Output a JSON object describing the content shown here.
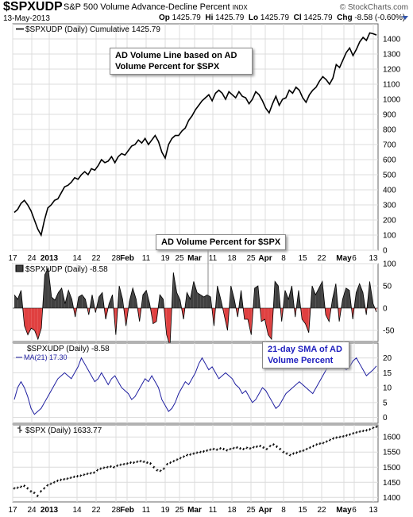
{
  "header": {
    "symbol": "$SPXUDP",
    "description": "S&P 500 Volume Advance-Decline Percent",
    "exchange": "INDX",
    "brand": "© StockCharts.com",
    "date": "13-May-2013",
    "open_label": "Op",
    "open": "1425.79",
    "high_label": "Hi",
    "high": "1425.79",
    "low_label": "Lo",
    "low": "1425.79",
    "close_label": "Cl",
    "close": "1425.79",
    "chg_label": "Chg",
    "chg": "-8.58 (-0.60%)"
  },
  "annotations": {
    "ad_line": "AD Volume Line based on AD Volume Percent for $SPX",
    "ad_percent": "AD Volume Percent for $SPX",
    "sma": "21-day SMA of AD Volume Percent"
  },
  "x_axis": {
    "ticks_top": [
      "17",
      "24",
      "2013",
      "14",
      "22",
      "28",
      "Feb",
      "11",
      "19",
      "25",
      "Mar",
      "11",
      "18",
      "25",
      "Apr",
      "8",
      "15",
      "22",
      "May",
      "6",
      "13"
    ],
    "ticks_bottom": [
      "17",
      "24",
      "2013",
      "14",
      "22",
      "28",
      "Feb",
      "11",
      "19",
      "25",
      "Mar",
      "11",
      "18",
      "25",
      "Apr",
      "8",
      "15",
      "22",
      "May",
      "6",
      "13"
    ],
    "bold_ticks": [
      "2013",
      "Feb",
      "Mar",
      "Apr",
      "May"
    ]
  },
  "chart_data": [
    {
      "type": "line",
      "legend": "$SPXUDP (Daily) Cumulative 1425.79",
      "ylim": [
        0,
        1500
      ],
      "yticks": [
        0,
        100,
        200,
        300,
        400,
        500,
        600,
        700,
        800,
        900,
        1000,
        1100,
        1200,
        1300,
        1400
      ],
      "series": [
        {
          "values": [
            250,
            270,
            310,
            330,
            300,
            260,
            200,
            140,
            100,
            200,
            280,
            300,
            330,
            340,
            380,
            420,
            430,
            450,
            480,
            470,
            500,
            520,
            500,
            540,
            530,
            560,
            600,
            580,
            590,
            620,
            580,
            620,
            640,
            630,
            660,
            690,
            700,
            730,
            710,
            740,
            700,
            730,
            760,
            720,
            650,
            610,
            700,
            740,
            760,
            760,
            790,
            810,
            860,
            890,
            930,
            960,
            990,
            1010,
            1030,
            990,
            1040,
            1060,
            1040,
            1000,
            1050,
            1030,
            1010,
            1050,
            1020,
            1010,
            970,
            1000,
            1050,
            1030,
            990,
            940,
            910,
            970,
            1020,
            960,
            1000,
            1010,
            1060,
            1040,
            1080,
            1060,
            1010,
            980,
            1030,
            1060,
            1080,
            1120,
            1150,
            1130,
            1100,
            1140,
            1230,
            1210,
            1260,
            1310,
            1340,
            1290,
            1330,
            1380,
            1410,
            1390,
            1440,
            1434,
            1426
          ]
        }
      ]
    },
    {
      "type": "bar",
      "legend": "$SPXUDP (Daily) -8.58",
      "ylim": [
        -75,
        100
      ],
      "yticks": [
        -50,
        0,
        50,
        100
      ],
      "series": [
        {
          "values": [
            30,
            20,
            40,
            -40,
            -60,
            -45,
            -50,
            -70,
            -45,
            75,
            90,
            25,
            18,
            35,
            45,
            10,
            40,
            20,
            -20,
            25,
            30,
            20,
            -15,
            30,
            -10,
            25,
            35,
            -25,
            10,
            30,
            -60,
            50,
            20,
            -40,
            15,
            45,
            20,
            -30,
            30,
            40,
            10,
            -35,
            -30,
            30,
            20,
            -60,
            -85,
            80,
            35,
            18,
            -25,
            35,
            20,
            60,
            35,
            30,
            25,
            30,
            25,
            -40,
            50,
            20,
            -15,
            -50,
            50,
            20,
            -20,
            40,
            -25,
            -25,
            -60,
            45,
            50,
            -30,
            -25,
            -60,
            -70,
            60,
            50,
            -30,
            40,
            20,
            50,
            -20,
            40,
            -25,
            -35,
            -55,
            50,
            30,
            45,
            60,
            -15,
            -30,
            20,
            55,
            -30,
            20,
            45,
            40,
            -25,
            35,
            55,
            35,
            -15,
            60,
            10,
            -9
          ]
        }
      ]
    },
    {
      "type": "line",
      "legend": "$SPXUDP (Daily) -8.58",
      "legend2": "MA(21) 17.30",
      "ylim": [
        -2,
        25
      ],
      "yticks": [
        0,
        5,
        10,
        15,
        20
      ],
      "series": [
        {
          "name": "MA(21) 17.30",
          "values": [
            6,
            10,
            12,
            10,
            7,
            3,
            1,
            2,
            3,
            5,
            7,
            9,
            11,
            13,
            14,
            15,
            14,
            13,
            15,
            17,
            20,
            18,
            16,
            14,
            12,
            13,
            15,
            13,
            11,
            13,
            14,
            12,
            10,
            9,
            8,
            6,
            7,
            9,
            11,
            13,
            12,
            14,
            12,
            10,
            6,
            4,
            2,
            3,
            5,
            8,
            10,
            12,
            11,
            13,
            15,
            18,
            20,
            18,
            16,
            17,
            15,
            13,
            14,
            15,
            14,
            13,
            11,
            10,
            8,
            9,
            7,
            5,
            6,
            8,
            10,
            9,
            7,
            5,
            3,
            4,
            6,
            8,
            9,
            10,
            11,
            12,
            11,
            10,
            9,
            8,
            10,
            12,
            14,
            16,
            18,
            20,
            21,
            19,
            17,
            16,
            17,
            19,
            20,
            18,
            16,
            14,
            15,
            16,
            17.3
          ]
        }
      ]
    },
    {
      "type": "line",
      "legend": "$SPX (Daily) 1633.77",
      "ylim": [
        1385,
        1640
      ],
      "yticks": [
        1400,
        1450,
        1500,
        1550,
        1600
      ],
      "series": [
        {
          "values": [
            1430,
            1432,
            1435,
            1438,
            1430,
            1420,
            1415,
            1405,
            1420,
            1430,
            1440,
            1445,
            1450,
            1455,
            1458,
            1460,
            1462,
            1465,
            1468,
            1470,
            1472,
            1475,
            1478,
            1480,
            1482,
            1490,
            1495,
            1498,
            1500,
            1502,
            1500,
            1505,
            1508,
            1510,
            1512,
            1515,
            1515,
            1518,
            1520,
            1518,
            1515,
            1512,
            1500,
            1490,
            1488,
            1495,
            1510,
            1515,
            1520,
            1525,
            1530,
            1535,
            1540,
            1542,
            1545,
            1548,
            1550,
            1552,
            1555,
            1558,
            1560,
            1558,
            1562,
            1560,
            1556,
            1560,
            1563,
            1565,
            1562,
            1560,
            1564,
            1562,
            1566,
            1568,
            1570,
            1565,
            1560,
            1570,
            1575,
            1568,
            1560,
            1550,
            1545,
            1540,
            1545,
            1548,
            1552,
            1555,
            1560,
            1565,
            1570,
            1575,
            1578,
            1580,
            1585,
            1590,
            1595,
            1598,
            1600,
            1602,
            1605,
            1608,
            1612,
            1615,
            1618,
            1620,
            1622,
            1625,
            1630,
            1633.77
          ]
        }
      ]
    }
  ]
}
